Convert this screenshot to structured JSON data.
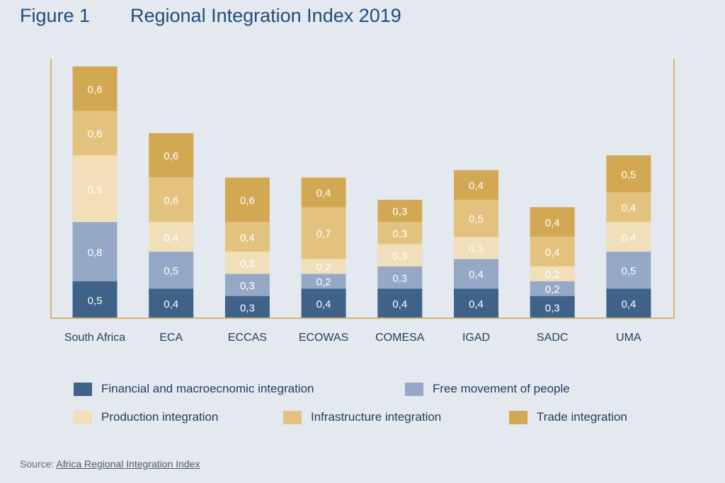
{
  "figure": {
    "number": "Figure 1",
    "title": "Regional Integration Index 2019"
  },
  "source": {
    "label": "Source:",
    "link_text": "Africa Regional Integration Index"
  },
  "colors": {
    "financial": "#3e6288",
    "people": "#95a9c6",
    "production": "#f1dfba",
    "infrastructure": "#e3c27e",
    "trade": "#d3a853",
    "frame": "#d6b56b",
    "title": "#1f4e79"
  },
  "legend": [
    {
      "name": "Financial and macroecnomic integration",
      "color": "#3e6288"
    },
    {
      "name": "Free movement of people",
      "color": "#95a9c6"
    },
    {
      "name": "Production integration",
      "color": "#f1dfba"
    },
    {
      "name": "Infrastructure integration",
      "color": "#e3c27e"
    },
    {
      "name": "Trade integration",
      "color": "#d3a853"
    }
  ],
  "chart_data": {
    "type": "bar",
    "stacked": true,
    "title": "Regional Integration Index 2019",
    "categories": [
      "South Africa",
      "ECA",
      "ECCAS",
      "ECOWAS",
      "COMESA",
      "IGAD",
      "SADC",
      "UMA"
    ],
    "series": [
      {
        "name": "Financial and macroecnomic integration",
        "color": "#3e6288",
        "values": [
          0.5,
          0.4,
          0.3,
          0.4,
          0.4,
          0.4,
          0.3,
          0.4
        ],
        "labels": [
          "0,5",
          "0,4",
          "0,3",
          "0,4",
          "0,4",
          "0,4",
          "0,3",
          "0,4"
        ]
      },
      {
        "name": "Free movement of people",
        "color": "#95a9c6",
        "values": [
          0.8,
          0.5,
          0.3,
          0.2,
          0.3,
          0.4,
          0.2,
          0.5
        ],
        "labels": [
          "0,8",
          "0,5",
          "0,3",
          "0,2",
          "0,3",
          "0,4",
          "0,2",
          "0,5"
        ]
      },
      {
        "name": "Production integration",
        "color": "#f1dfba",
        "values": [
          0.9,
          0.4,
          0.3,
          0.2,
          0.3,
          0.3,
          0.2,
          0.4
        ],
        "labels": [
          "0,9",
          "0,4",
          "0,3",
          "0,2",
          "0,3",
          "0,3",
          "0,2",
          "0,4"
        ]
      },
      {
        "name": "Infrastructure integration",
        "color": "#e3c27e",
        "values": [
          0.6,
          0.6,
          0.4,
          0.7,
          0.3,
          0.5,
          0.4,
          0.4
        ],
        "labels": [
          "0,6",
          "0,6",
          "0,4",
          "0,7",
          "0,3",
          "0,5",
          "0,4",
          "0,4"
        ]
      },
      {
        "name": "Trade integration",
        "color": "#d3a853",
        "values": [
          0.6,
          0.6,
          0.6,
          0.4,
          0.3,
          0.4,
          0.4,
          0.5
        ],
        "labels": [
          "0,6",
          "0,6",
          "0,6",
          "0,4",
          "0,3",
          "0,4",
          "0,4",
          "0,5"
        ]
      }
    ],
    "ylim": [
      0,
      3.4
    ],
    "xlabel": "",
    "ylabel": "",
    "grid": false,
    "legend_position": "bottom"
  }
}
